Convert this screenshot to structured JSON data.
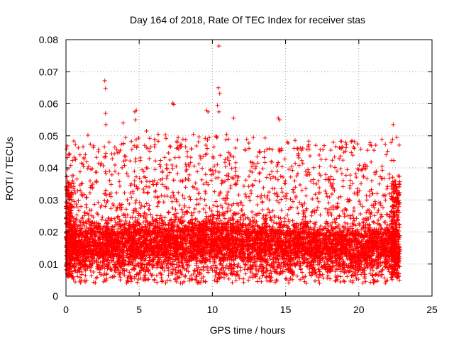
{
  "chart_data": {
    "type": "scatter",
    "title": "Day 164 of 2018, Rate Of TEC Index for receiver stas",
    "xlabel": "GPS time / hours",
    "ylabel": "ROTI / TECUs",
    "xlim": [
      0,
      25
    ],
    "ylim": [
      0,
      0.08
    ],
    "xticks": [
      0,
      5,
      10,
      15,
      20,
      25
    ],
    "yticks": [
      0,
      0.01,
      0.02,
      0.03,
      0.04,
      0.05,
      0.06,
      0.07,
      0.08
    ],
    "xtick_labels": [
      "0",
      "5",
      "10",
      "15",
      "20",
      "25"
    ],
    "ytick_labels": [
      "0",
      "0.01",
      "0.02",
      "0.03",
      "0.04",
      "0.05",
      "0.06",
      "0.07",
      "0.08"
    ],
    "grid": true,
    "marker": "+",
    "color": "#ff0000",
    "data_range_x": [
      0,
      22.8
    ],
    "series": [
      {
        "name": "ROTI",
        "points": [
          [
            2.65,
            0.0672
          ],
          [
            2.7,
            0.0648
          ],
          [
            2.7,
            0.057
          ],
          [
            2.72,
            0.0535
          ],
          [
            10.45,
            0.078
          ],
          [
            10.4,
            0.065
          ],
          [
            10.5,
            0.0632
          ],
          [
            10.35,
            0.0595
          ],
          [
            10.45,
            0.0575
          ],
          [
            4.7,
            0.0575
          ],
          [
            4.8,
            0.058
          ],
          [
            4.75,
            0.055
          ],
          [
            7.3,
            0.0602
          ],
          [
            7.35,
            0.0598
          ],
          [
            9.6,
            0.058
          ],
          [
            9.7,
            0.0575
          ],
          [
            14.5,
            0.0555
          ],
          [
            14.6,
            0.055
          ],
          [
            22.35,
            0.0535
          ],
          [
            11.45,
            0.0555
          ],
          [
            1.5,
            0.0502
          ],
          [
            3.9,
            0.054
          ],
          [
            5.5,
            0.0515
          ],
          [
            6.3,
            0.0505
          ],
          [
            12.8,
            0.0495
          ],
          [
            16.1,
            0.0455
          ],
          [
            17.3,
            0.044
          ],
          [
            19.9,
            0.0475
          ],
          [
            20.6,
            0.0455
          ],
          [
            22.6,
            0.0495
          ],
          [
            8.7,
            0.0505
          ],
          [
            0.1,
            0.0432
          ],
          [
            13.9,
            0.046
          ]
        ],
        "dense_band": [
          [
            0,
            0.0135
          ],
          [
            0.5,
            0.0155
          ],
          [
            1,
            0.0145
          ],
          [
            2,
            0.016
          ],
          [
            3,
            0.015
          ],
          [
            4,
            0.0155
          ],
          [
            5,
            0.016
          ],
          [
            6,
            0.0155
          ],
          [
            7,
            0.0165
          ],
          [
            8,
            0.016
          ],
          [
            9,
            0.0165
          ],
          [
            10,
            0.017
          ],
          [
            11,
            0.0165
          ],
          [
            12,
            0.016
          ],
          [
            13,
            0.0155
          ],
          [
            14,
            0.0155
          ],
          [
            15,
            0.015
          ],
          [
            16,
            0.0155
          ],
          [
            17,
            0.015
          ],
          [
            18,
            0.0145
          ],
          [
            19,
            0.015
          ],
          [
            20,
            0.0145
          ],
          [
            21,
            0.015
          ],
          [
            22,
            0.0155
          ],
          [
            22.8,
            0.014
          ]
        ]
      }
    ]
  }
}
